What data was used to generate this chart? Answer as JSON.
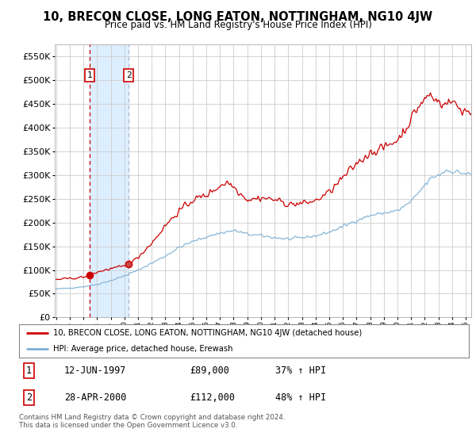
{
  "title": "10, BRECON CLOSE, LONG EATON, NOTTINGHAM, NG10 4JW",
  "subtitle": "Price paid vs. HM Land Registry's House Price Index (HPI)",
  "legend_line1": "10, BRECON CLOSE, LONG EATON, NOTTINGHAM, NG10 4JW (detached house)",
  "legend_line2": "HPI: Average price, detached house, Erewash",
  "sale1_label": "1",
  "sale1_date": "12-JUN-1997",
  "sale1_price": "£89,000",
  "sale1_hpi": "37% ↑ HPI",
  "sale1_year": 1997.45,
  "sale1_value": 89000,
  "sale2_label": "2",
  "sale2_date": "28-APR-2000",
  "sale2_price": "£112,000",
  "sale2_hpi": "48% ↑ HPI",
  "sale2_year": 2000.32,
  "sale2_value": 112000,
  "footer": "Contains HM Land Registry data © Crown copyright and database right 2024.\nThis data is licensed under the Open Government Licence v3.0.",
  "red_color": "#cc0000",
  "blue_color": "#7bafd4",
  "shading_color": "#ddeeff",
  "background_color": "#ffffff",
  "grid_color": "#cccccc",
  "ylim": [
    0,
    575000
  ],
  "yticks": [
    0,
    50000,
    100000,
    150000,
    200000,
    250000,
    300000,
    350000,
    400000,
    450000,
    500000,
    550000
  ],
  "xlim_start": 1994.9,
  "xlim_end": 2025.4
}
